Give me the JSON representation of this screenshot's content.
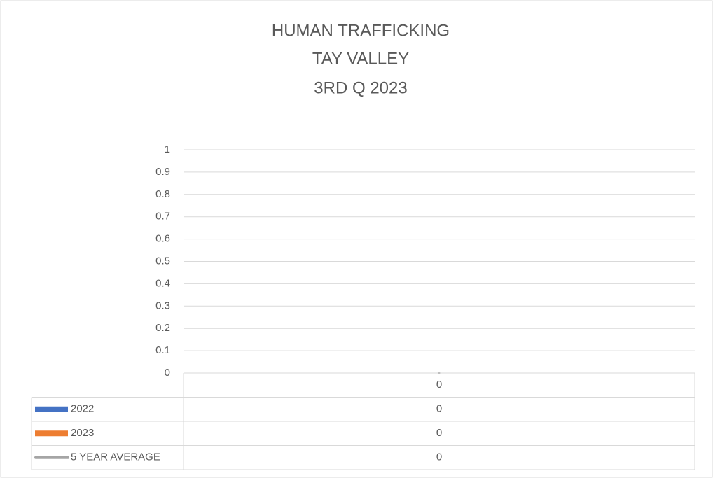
{
  "chart_data": {
    "type": "bar",
    "title": [
      "HUMAN TRAFFICKING",
      "TAY VALLEY",
      "3RD Q 2023"
    ],
    "categories": [
      "0"
    ],
    "series": [
      {
        "name": "2022",
        "color": "#4472c4",
        "values": [
          0
        ]
      },
      {
        "name": "2023",
        "color": "#ed7d31",
        "values": [
          0
        ]
      },
      {
        "name": "5 YEAR AVERAGE",
        "color": "#a5a5a5",
        "type": "line",
        "values": [
          0
        ]
      }
    ],
    "ylim": [
      0,
      1
    ],
    "yticks": [
      0,
      0.1,
      0.2,
      0.3,
      0.4,
      0.5,
      0.6,
      0.7,
      0.8,
      0.9,
      1
    ],
    "grid": true,
    "data_table": true
  }
}
